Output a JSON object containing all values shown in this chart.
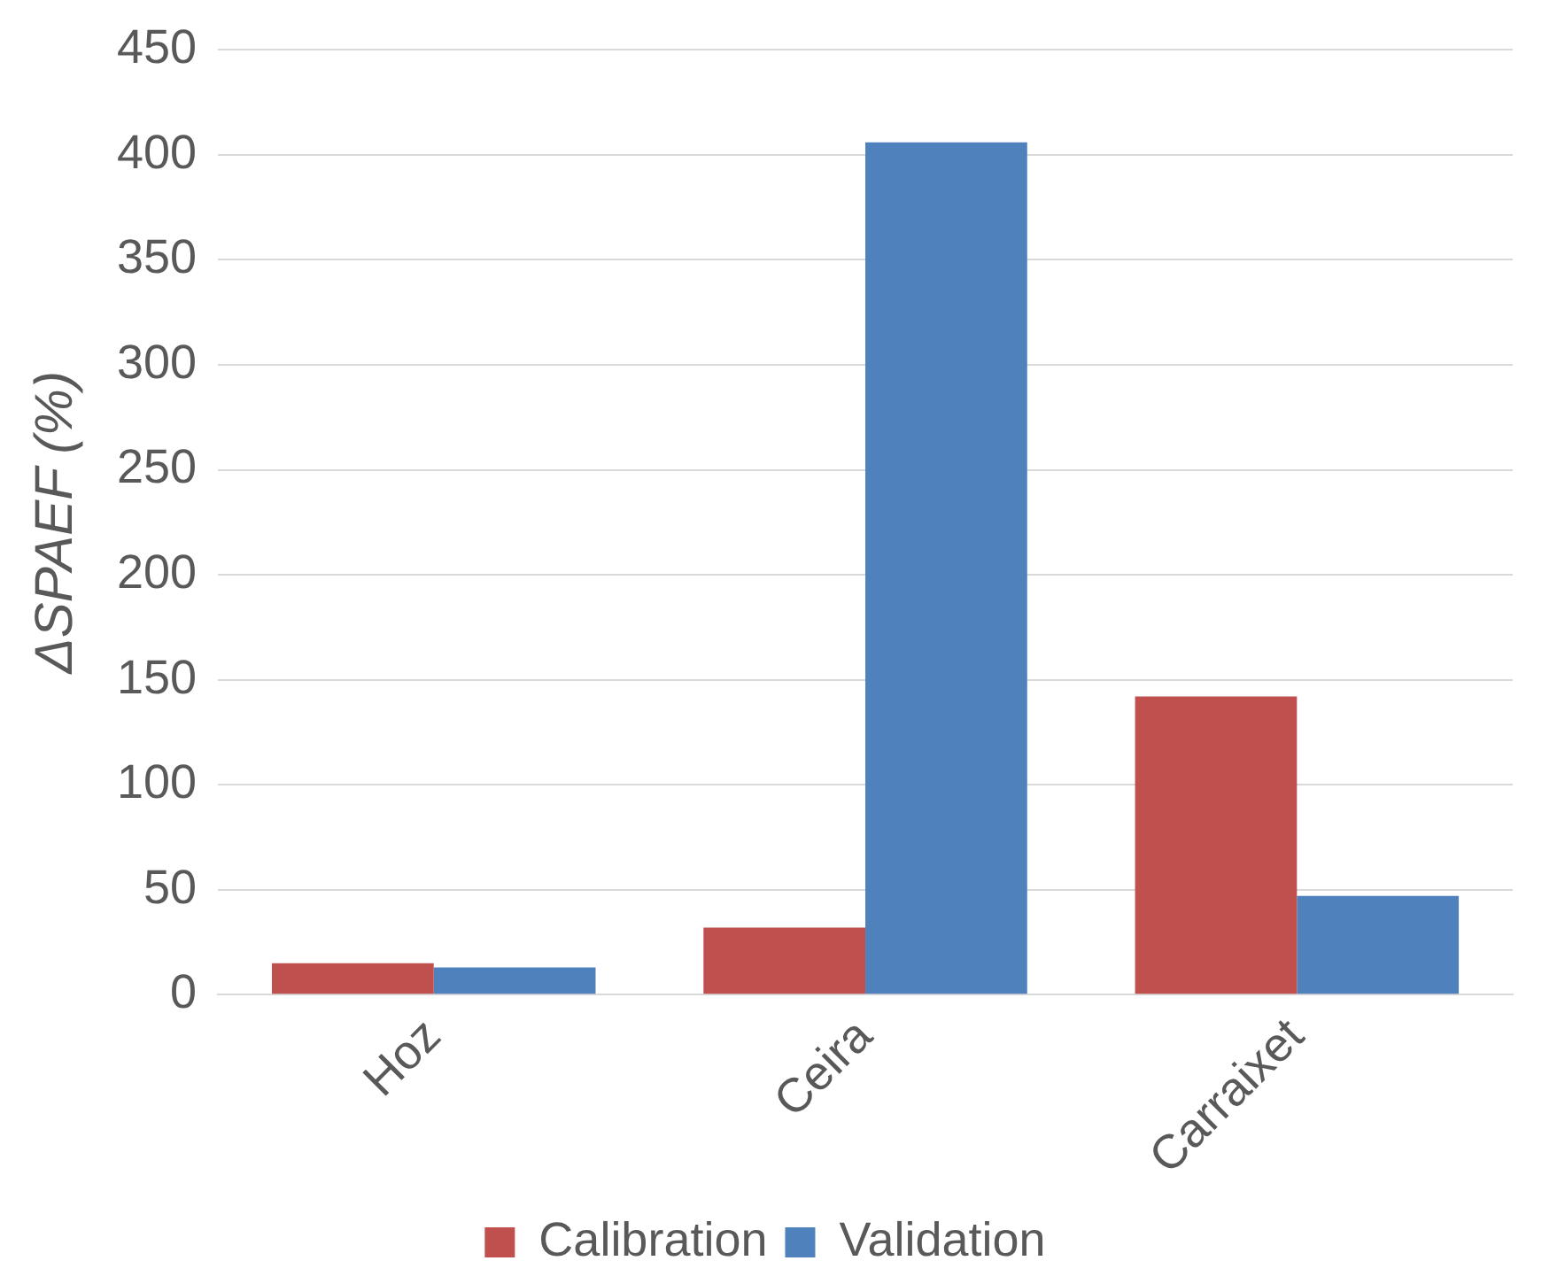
{
  "chart_data": {
    "type": "bar",
    "ylabel": "ΔSPAEF (%)",
    "categories": [
      "Hoz",
      "Ceira",
      "Carraixet"
    ],
    "series": [
      {
        "name": "Calibration",
        "color": "#c0504d",
        "values": [
          15,
          32,
          142
        ]
      },
      {
        "name": "Validation",
        "color": "#4f81bd",
        "values": [
          13,
          406,
          47
        ]
      }
    ],
    "ylim": [
      0,
      450
    ],
    "yticks": [
      0,
      50,
      100,
      150,
      200,
      250,
      300,
      350,
      400,
      450
    ],
    "grid": "y",
    "legend": "bottom"
  }
}
